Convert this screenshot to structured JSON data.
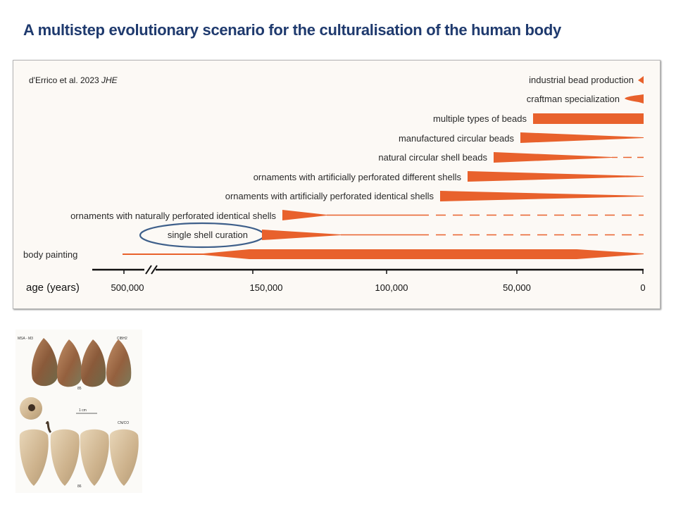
{
  "slide": {
    "title": "A multistep evolutionary scenario for the culturalisation of the human body"
  },
  "figure": {
    "citation_text": "d'Errico et al. 2023 ",
    "citation_journal": "JHE",
    "bar_color": "#e8612c",
    "highlight_circle_color": "#3e5f8a",
    "traits": [
      {
        "label": "industrial bead production"
      },
      {
        "label": "craftman specialization"
      },
      {
        "label": "multiple types of beads"
      },
      {
        "label": "manufactured circular beads"
      },
      {
        "label": "natural circular shell beads"
      },
      {
        "label": "ornaments with artificially perforated different shells"
      },
      {
        "label": "ornaments with artificially perforated identical shells"
      },
      {
        "label": "ornaments with naturally perforated identical shells"
      },
      {
        "label": "single shell curation",
        "highlighted": true
      },
      {
        "label": "body painting"
      }
    ],
    "axis": {
      "label": "age (years)",
      "ticks": [
        "500,000",
        "150,000",
        "100,000",
        "50,000",
        "0"
      ],
      "axis_break": true
    }
  },
  "photo": {
    "labels": {
      "top_left": "MSA - M3",
      "top_right": "CIBH2",
      "scale": "1 cm",
      "mid_right": "CN/CO",
      "fig_a": "85",
      "fig_b": "86"
    }
  }
}
